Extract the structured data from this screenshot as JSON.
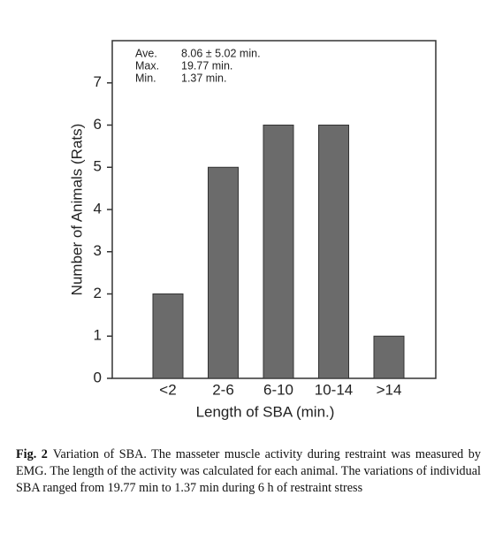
{
  "chart_data": {
    "type": "bar",
    "x_label": "Length of SBA (min.)",
    "y_label": "Number of Animals (Rats)",
    "categories": [
      "<2",
      "2-6",
      "6-10",
      "10-14",
      ">14"
    ],
    "values": [
      2,
      5,
      6,
      6,
      1
    ],
    "color": "#6b6b6b",
    "ylim": [
      0,
      8
    ],
    "yticks": [
      0,
      1,
      2,
      3,
      4,
      5,
      6,
      7
    ],
    "annotations": [
      {
        "label": "Ave.",
        "value": "8.06 ± 5.02 min."
      },
      {
        "label": "Max.",
        "value": "19.77 min."
      },
      {
        "label": "Min.",
        "value": "1.37 min."
      }
    ]
  },
  "caption": {
    "label": "Fig. 2",
    "text": "Variation of SBA. The masseter muscle activity during restraint was measured by EMG. The length of the activity was calculated for each animal. The variations of individual SBA ranged from 19.77 min to 1.37 min during 6 h of restraint stress"
  }
}
